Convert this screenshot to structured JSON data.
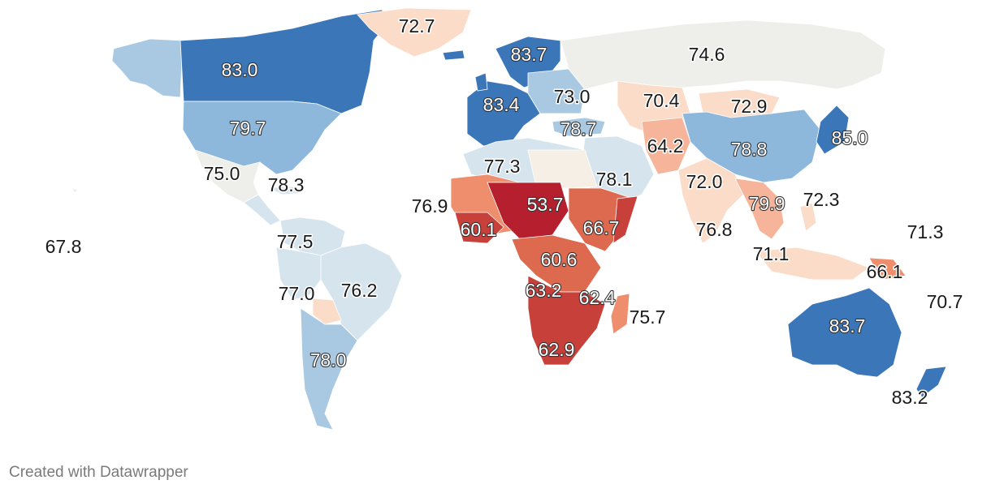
{
  "footer": {
    "credit": "Created with Datawrapper"
  },
  "colors": {
    "neutral": "#eeefea",
    "light_blue": "#d6e4ee",
    "mid_blue": "#a9c9e3",
    "blue": "#8db8db",
    "dark_blue": "#3b77b8",
    "beige": "#f6efe6",
    "peach": "#fbdcc8",
    "light_orange": "#f6b59a",
    "orange": "#ee8e6c",
    "dark_orange": "#dd6a4f",
    "red": "#c8403a",
    "dark_red": "#b51f2e"
  },
  "labels": [
    {
      "id": "greenland",
      "value": "72.7",
      "style": "dark"
    },
    {
      "id": "canada",
      "value": "83.0",
      "style": "white"
    },
    {
      "id": "usa",
      "value": "79.7",
      "style": "white"
    },
    {
      "id": "mexico",
      "value": "75.0",
      "style": "dark"
    },
    {
      "id": "cuba",
      "value": "78.3",
      "style": "dark"
    },
    {
      "id": "hawaii",
      "value": "67.8",
      "style": "dark"
    },
    {
      "id": "colombia",
      "value": "77.5",
      "style": "dark"
    },
    {
      "id": "peru",
      "value": "77.0",
      "style": "dark"
    },
    {
      "id": "brazil",
      "value": "76.2",
      "style": "dark"
    },
    {
      "id": "argentina",
      "value": "78.0",
      "style": "white"
    },
    {
      "id": "sweden",
      "value": "83.7",
      "style": "white"
    },
    {
      "id": "france",
      "value": "83.4",
      "style": "white"
    },
    {
      "id": "ukraine",
      "value": "73.0",
      "style": "dark"
    },
    {
      "id": "turkey",
      "value": "78.7",
      "style": "white"
    },
    {
      "id": "russia",
      "value": "74.6",
      "style": "dark"
    },
    {
      "id": "kazakhstan",
      "value": "70.4",
      "style": "dark"
    },
    {
      "id": "mongolia",
      "value": "72.9",
      "style": "dark"
    },
    {
      "id": "japan",
      "value": "85.0",
      "style": "white"
    },
    {
      "id": "china",
      "value": "78.8",
      "style": "white"
    },
    {
      "id": "afghanistan",
      "value": "64.2",
      "style": "dark"
    },
    {
      "id": "india",
      "value": "72.0",
      "style": "dark"
    },
    {
      "id": "algeria",
      "value": "77.3",
      "style": "dark"
    },
    {
      "id": "saudi",
      "value": "78.1",
      "style": "dark"
    },
    {
      "id": "chad",
      "value": "53.7",
      "style": "white"
    },
    {
      "id": "nigeria",
      "value": "60.1",
      "style": "white"
    },
    {
      "id": "westafrica",
      "value": "76.9",
      "style": "dark"
    },
    {
      "id": "ethiopia",
      "value": "66.7",
      "style": "white"
    },
    {
      "id": "drc",
      "value": "60.6",
      "style": "white"
    },
    {
      "id": "angola",
      "value": "63.2",
      "style": "white"
    },
    {
      "id": "tanzania",
      "value": "62.4",
      "style": "white"
    },
    {
      "id": "southafrica",
      "value": "62.9",
      "style": "white"
    },
    {
      "id": "madagascar",
      "value": "75.7",
      "style": "dark"
    },
    {
      "id": "maldives",
      "value": "76.8",
      "style": "dark"
    },
    {
      "id": "thailand",
      "value": "79.9",
      "style": "white"
    },
    {
      "id": "philippines",
      "value": "72.3",
      "style": "dark"
    },
    {
      "id": "indonesia",
      "value": "71.1",
      "style": "dark"
    },
    {
      "id": "png",
      "value": "66.1",
      "style": "dark"
    },
    {
      "id": "micronesia",
      "value": "71.3",
      "style": "dark"
    },
    {
      "id": "solomon",
      "value": "70.7",
      "style": "dark"
    },
    {
      "id": "australia",
      "value": "83.7",
      "style": "white"
    },
    {
      "id": "newzealand",
      "value": "83.2",
      "style": "dark"
    }
  ]
}
